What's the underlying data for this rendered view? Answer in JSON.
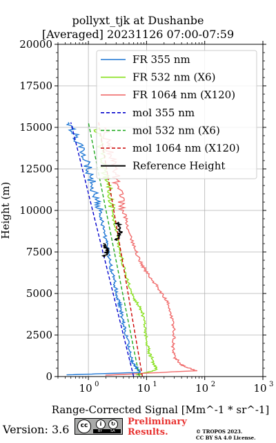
{
  "header": {
    "title_line1": "pollyxt_tjk at Dushanbe",
    "title_line2": "[Averaged] 20231126 07:00-07:59"
  },
  "footer": {
    "version": "Version: 3.6",
    "preliminary_line1": "Preliminary",
    "preliminary_line2": "Results.",
    "copyright_line1": "© TROPOS 2023.",
    "copyright_line2": "CC BY SA 4.0 License.",
    "cc_badge_labels": [
      "cc",
      "BY",
      "SA"
    ],
    "preliminary_color": "#e8312f"
  },
  "chart_data": {
    "type": "line",
    "title": "pollyxt_tjk at Dushanbe [Averaged] 20231126 07:00-07:59",
    "xlabel": "Range-Corrected Signal [Mm^-1 * sr^-1]",
    "ylabel": "Height (m)",
    "xscale": "log",
    "xlim": [
      0.3,
      1000
    ],
    "ylim": [
      0,
      20000
    ],
    "x_ticks": [
      1,
      10,
      100,
      1000
    ],
    "x_tick_labels": [
      "10^0",
      "10^1",
      "10^2",
      "10^3"
    ],
    "y_ticks": [
      0,
      2500,
      5000,
      7500,
      10000,
      12500,
      15000,
      17500,
      20000
    ],
    "y_tick_labels": [
      "0",
      "2500",
      "5000",
      "7500",
      "10000",
      "12500",
      "15000",
      "17500",
      "20000"
    ],
    "grid": true,
    "legend_position": "top-right",
    "series": [
      {
        "name": "FR 355 nm",
        "color": "#1f77d4",
        "style": "solid",
        "noisy": true,
        "points": [
          [
            0.4,
            100
          ],
          [
            8,
            250
          ],
          [
            6.5,
            600
          ],
          [
            5.5,
            1000
          ],
          [
            5.0,
            1800
          ],
          [
            4.4,
            2500
          ],
          [
            4.0,
            3200
          ],
          [
            3.6,
            4000
          ],
          [
            3.3,
            4600
          ],
          [
            3.0,
            5200
          ],
          [
            2.7,
            6000
          ],
          [
            2.4,
            6700
          ],
          [
            2.2,
            7500
          ],
          [
            2.0,
            8200
          ],
          [
            1.8,
            9000
          ],
          [
            1.6,
            9800
          ],
          [
            1.4,
            10600
          ],
          [
            1.2,
            11500
          ],
          [
            1.0,
            12500
          ],
          [
            0.8,
            13500
          ],
          [
            0.6,
            14500
          ],
          [
            0.45,
            15300
          ]
        ]
      },
      {
        "name": "FR 532 nm (X6)",
        "color": "#88e01e",
        "style": "solid",
        "noisy": true,
        "points": [
          [
            7,
            100
          ],
          [
            15,
            400
          ],
          [
            13,
            900
          ],
          [
            11,
            1500
          ],
          [
            10,
            2200
          ],
          [
            9.5,
            3000
          ],
          [
            8.5,
            3800
          ],
          [
            7.0,
            4400
          ],
          [
            5.5,
            5000
          ],
          [
            4.5,
            6000
          ],
          [
            3.8,
            7000
          ],
          [
            3.3,
            8000
          ],
          [
            2.9,
            9000
          ],
          [
            2.6,
            10000
          ],
          [
            2.3,
            11000
          ],
          [
            2.0,
            12000
          ],
          [
            1.8,
            13000
          ],
          [
            1.6,
            14000
          ],
          [
            1.4,
            15000
          ]
        ]
      },
      {
        "name": "FR 1064 nm (X120)",
        "color": "#f06a6a",
        "style": "solid",
        "noisy": true,
        "points": [
          [
            2,
            80
          ],
          [
            70,
            350
          ],
          [
            40,
            700
          ],
          [
            30,
            1200
          ],
          [
            28,
            1800
          ],
          [
            30,
            2500
          ],
          [
            28,
            3300
          ],
          [
            25,
            4300
          ],
          [
            18,
            5000
          ],
          [
            14,
            5600
          ],
          [
            10,
            6300
          ],
          [
            7.5,
            7000
          ],
          [
            5.8,
            8000
          ],
          [
            4.8,
            9000
          ],
          [
            4.0,
            10000
          ],
          [
            3.4,
            11000
          ],
          [
            3.0,
            12000
          ],
          [
            2.6,
            13000
          ],
          [
            2.2,
            14000
          ],
          [
            1.9,
            15000
          ]
        ]
      },
      {
        "name": "mol 355 nm",
        "color": "#0000cc",
        "style": "dashed",
        "noisy": false,
        "points": [
          [
            6.0,
            0
          ],
          [
            0.5,
            15300
          ]
        ]
      },
      {
        "name": "mol 532 nm (X6)",
        "color": "#1faa1f",
        "style": "dashed",
        "noisy": false,
        "points": [
          [
            7.5,
            0
          ],
          [
            1.0,
            15300
          ]
        ]
      },
      {
        "name": "mol 1064 nm (X120)",
        "color": "#cc0000",
        "style": "dashed",
        "noisy": false,
        "points": [
          [
            8.5,
            0
          ],
          [
            1.5,
            15300
          ]
        ]
      },
      {
        "name": "Reference Height",
        "color": "#000000",
        "style": "solid",
        "noisy": true,
        "segments": [
          [
            [
              1.9,
              7200
            ],
            [
              2.1,
              7600
            ],
            [
              1.8,
              8000
            ]
          ],
          [
            [
              3.0,
              8200
            ],
            [
              3.5,
              8700
            ],
            [
              3.2,
              9300
            ]
          ]
        ]
      }
    ]
  }
}
